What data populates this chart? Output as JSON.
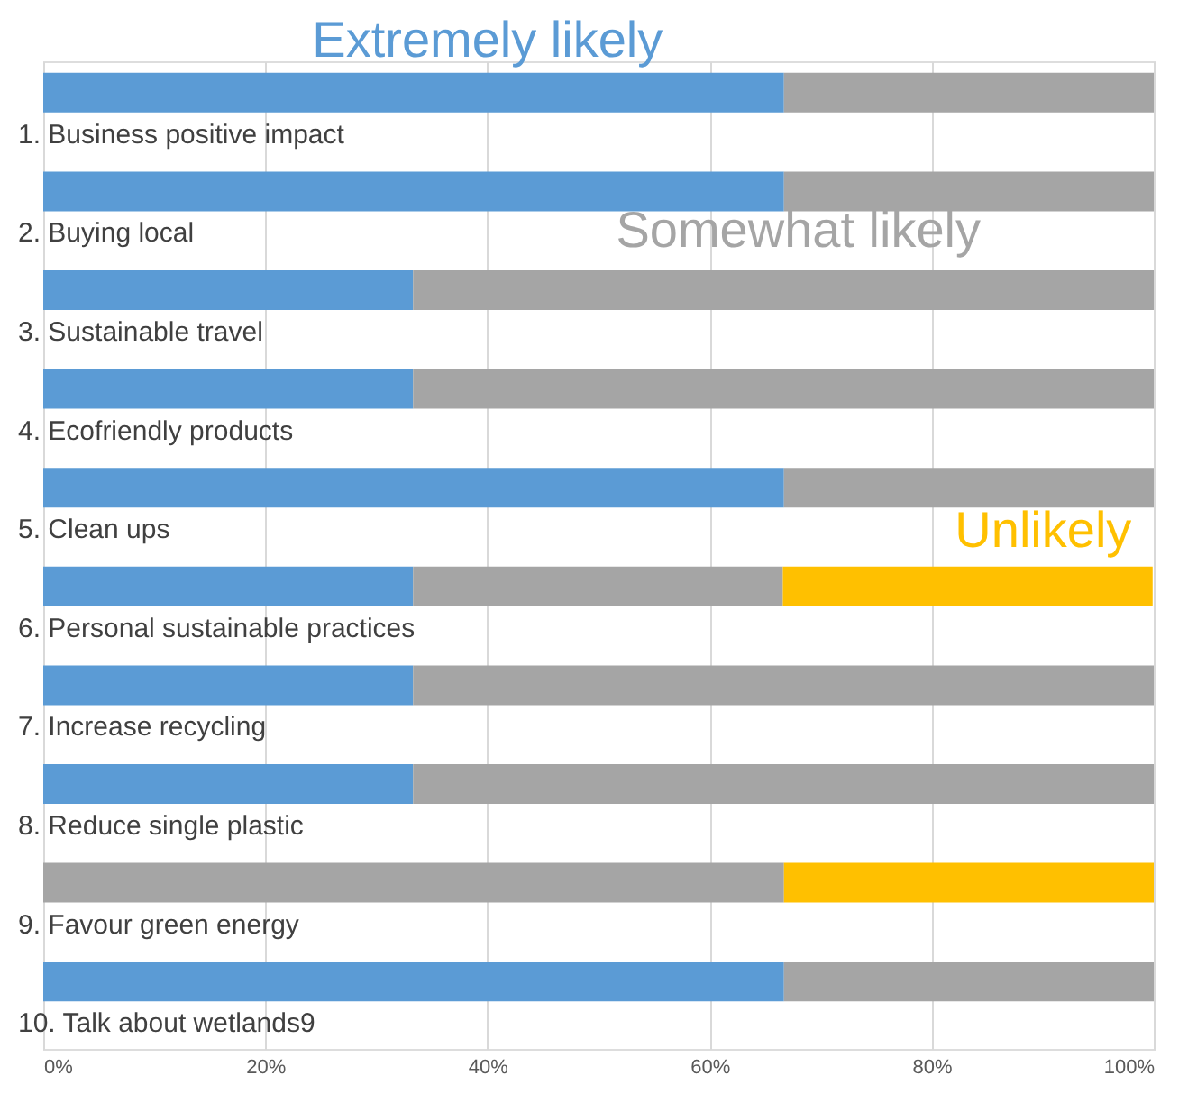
{
  "chart_data": {
    "type": "bar",
    "orientation": "horizontal",
    "stacked": true,
    "categories": [
      "1. Business positive impact",
      "2. Buying local",
      "3. Sustainable travel",
      "4. Ecofriendly products",
      "5. Clean ups",
      "6. Personal sustainable practices",
      "7. Increase recycling",
      "8. Reduce single plastic",
      "9. Favour green energy",
      "10. Talk about wetlands9"
    ],
    "series": [
      {
        "name": "Extremely likely",
        "color": "#5b9bd5",
        "values": [
          66.7,
          66.7,
          33.3,
          33.3,
          66.7,
          33.3,
          33.3,
          33.3,
          0,
          66.7
        ]
      },
      {
        "name": "Somewhat likely",
        "color": "#a5a5a5",
        "values": [
          33.3,
          33.3,
          66.7,
          66.7,
          33.3,
          33.3,
          66.7,
          66.7,
          66.7,
          33.3
        ]
      },
      {
        "name": "Unlikely",
        "color": "#ffc000",
        "values": [
          0,
          0,
          0,
          0,
          0,
          33.3,
          0,
          0,
          33.3,
          0
        ]
      }
    ],
    "xlim": [
      0,
      100
    ],
    "xticks": [
      {
        "value": 0,
        "label": "0%"
      },
      {
        "value": 20,
        "label": "20%"
      },
      {
        "value": 40,
        "label": "40%"
      },
      {
        "value": 60,
        "label": "60%"
      },
      {
        "value": 80,
        "label": "80%"
      },
      {
        "value": 100,
        "label": "100%"
      }
    ],
    "grid": "x",
    "legend": false
  }
}
